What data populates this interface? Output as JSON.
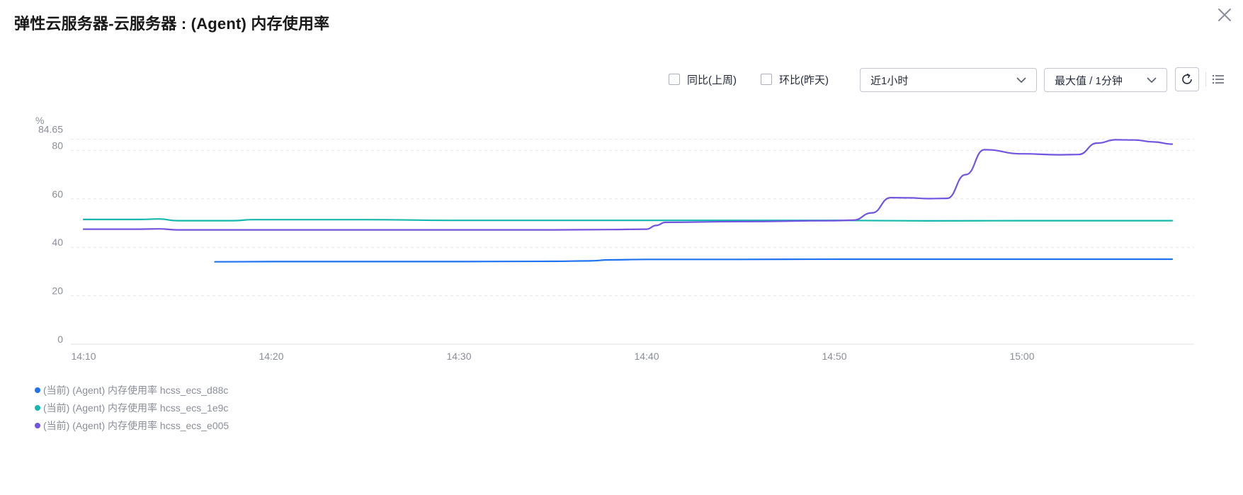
{
  "header": {
    "title": "弹性云服务器-云服务器 : (Agent) 内存使用率"
  },
  "toolbar": {
    "compare_week_label": "同比(上周)",
    "compare_day_label": "环比(昨天)",
    "time_range_value": "近1小时",
    "aggregation_value": "最大值 / 1分钟",
    "refresh_icon": "refresh-icon",
    "menu_icon": "list-icon",
    "close_icon": "close-icon"
  },
  "colors": {
    "blue": "#1f72f0",
    "teal": "#15b8ae",
    "purple": "#7155e0",
    "grid": "#e6e6e6",
    "axis_text": "#8a8e99"
  },
  "chart_data": {
    "type": "line",
    "ylabel": "%",
    "ylim": [
      0,
      84.65
    ],
    "y_ticks": [
      "0",
      "20",
      "40",
      "60",
      "80",
      "84.65"
    ],
    "x_ticks": [
      "14:10",
      "14:20",
      "14:30",
      "14:40",
      "14:50",
      "15:00"
    ],
    "x_range": [
      "14:10",
      "15:09"
    ],
    "grid": true,
    "legend_position": "bottom-left",
    "series": [
      {
        "name": "(当前) (Agent) 内存使用率 hcss_ecs_d88c",
        "color": "#1f72f0",
        "points": [
          [
            "14:17",
            34.0
          ],
          [
            "14:20",
            34.1
          ],
          [
            "14:25",
            34.1
          ],
          [
            "14:30",
            34.1
          ],
          [
            "14:35",
            34.2
          ],
          [
            "14:37",
            34.4
          ],
          [
            "14:38",
            34.8
          ],
          [
            "14:40",
            35.0
          ],
          [
            "14:45",
            35.0
          ],
          [
            "14:50",
            35.1
          ],
          [
            "14:55",
            35.1
          ],
          [
            "15:00",
            35.1
          ],
          [
            "15:05",
            35.1
          ],
          [
            "15:08",
            35.1
          ]
        ]
      },
      {
        "name": "(当前) (Agent) 内存使用率 hcss_ecs_1e9c",
        "color": "#15b8ae",
        "points": [
          [
            "14:10",
            51.5
          ],
          [
            "14:13",
            51.5
          ],
          [
            "14:14",
            51.7
          ],
          [
            "14:15",
            51.0
          ],
          [
            "14:18",
            51.0
          ],
          [
            "14:19",
            51.4
          ],
          [
            "14:25",
            51.4
          ],
          [
            "14:30",
            51.1
          ],
          [
            "14:35",
            51.1
          ],
          [
            "14:40",
            51.1
          ],
          [
            "14:45",
            51.1
          ],
          [
            "14:50",
            51.1
          ],
          [
            "14:55",
            50.9
          ],
          [
            "15:00",
            51.0
          ],
          [
            "15:05",
            51.0
          ],
          [
            "15:08",
            51.0
          ]
        ]
      },
      {
        "name": "(当前) (Agent) 内存使用率 hcss_ecs_e005",
        "color": "#7155e0",
        "points": [
          [
            "14:10",
            47.5
          ],
          [
            "14:13",
            47.5
          ],
          [
            "14:14",
            47.6
          ],
          [
            "14:15",
            47.2
          ],
          [
            "14:20",
            47.2
          ],
          [
            "14:25",
            47.2
          ],
          [
            "14:30",
            47.2
          ],
          [
            "14:35",
            47.2
          ],
          [
            "14:38",
            47.3
          ],
          [
            "14:40",
            47.5
          ],
          [
            "14:40.5",
            49.0
          ],
          [
            "14:41",
            50.3
          ],
          [
            "14:45",
            50.6
          ],
          [
            "14:50",
            51.0
          ],
          [
            "14:51",
            51.2
          ],
          [
            "14:52",
            54.2
          ],
          [
            "14:53",
            60.5
          ],
          [
            "14:54",
            60.4
          ],
          [
            "14:55",
            60.1
          ],
          [
            "14:56",
            60.2
          ],
          [
            "14:57",
            70.0
          ],
          [
            "14:58",
            80.3
          ],
          [
            "15:00",
            78.6
          ],
          [
            "15:02",
            78.2
          ],
          [
            "15:03",
            78.3
          ],
          [
            "15:04",
            83.0
          ],
          [
            "15:05",
            84.4
          ],
          [
            "15:06",
            84.3
          ],
          [
            "15:07",
            83.5
          ],
          [
            "15:08",
            82.6
          ]
        ]
      }
    ]
  }
}
